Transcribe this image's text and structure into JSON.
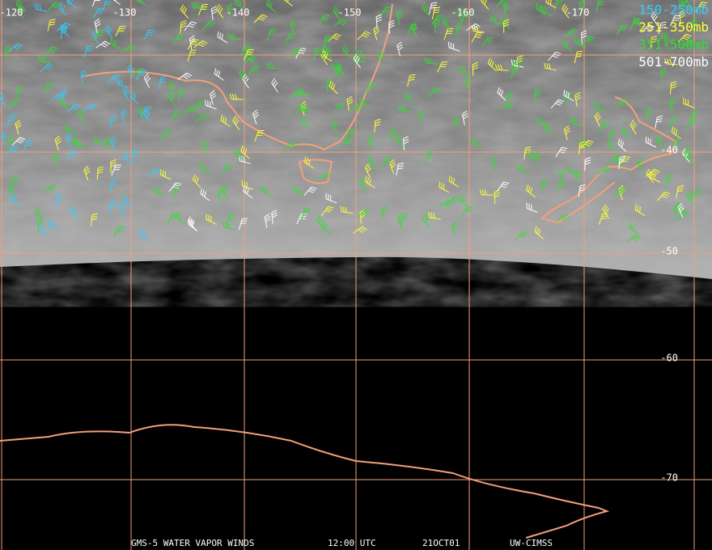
{
  "map": {
    "longitude_labels": [
      "-120",
      "-130",
      "-140",
      "-150",
      "-160",
      "-170"
    ],
    "latitude_labels": [
      "-40",
      "-50",
      "-60",
      "-70"
    ],
    "legend": [
      {
        "label": "150-250mb",
        "color": "#33ccff"
      },
      {
        "label": "251-350mb",
        "color": "#ffff33"
      },
      {
        "label": "351-500mb",
        "color": "#33dd33"
      },
      {
        "label": "501-700mb",
        "color": "#ffffff"
      }
    ],
    "footer": [
      "GMS-5 WATER VAPOR WINDS",
      "12:00 UTC",
      "21OCT01",
      "UW-CIMSS"
    ]
  }
}
